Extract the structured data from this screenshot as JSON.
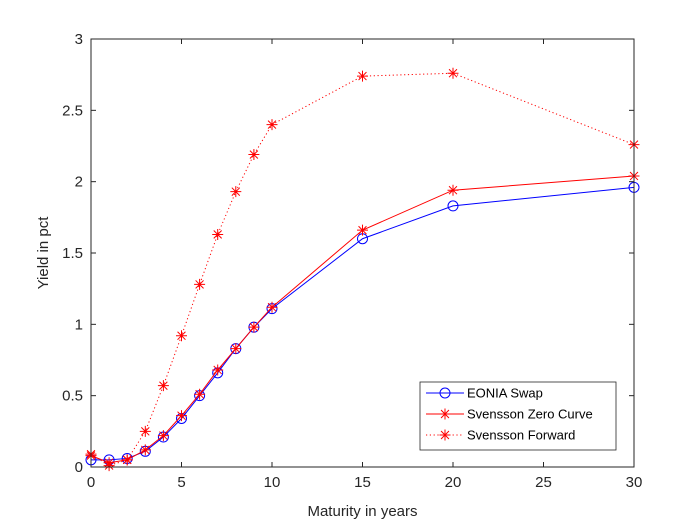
{
  "chart_data": {
    "type": "line",
    "title": "",
    "xlabel": "Maturity in years",
    "ylabel": "Yield in pct",
    "xlim": [
      0,
      30
    ],
    "ylim": [
      0,
      3
    ],
    "xticks": [
      0,
      5,
      10,
      15,
      20,
      25,
      30
    ],
    "yticks": [
      0,
      0.5,
      1,
      1.5,
      2,
      2.5,
      3
    ],
    "xtick_labels": [
      "0",
      "5",
      "10",
      "15",
      "20",
      "25",
      "30"
    ],
    "ytick_labels": [
      "0",
      "0.5",
      "1",
      "1.5",
      "2",
      "2.5",
      "3"
    ],
    "grid": false,
    "legend_position": "bottom-right",
    "series": [
      {
        "name": "EONIA Swap",
        "color": "#0000ff",
        "line_style": "solid",
        "marker": "circle",
        "x": [
          0,
          1,
          2,
          3,
          4,
          5,
          6,
          7,
          8,
          9,
          10,
          15,
          20,
          30
        ],
        "y": [
          0.05,
          0.05,
          0.06,
          0.11,
          0.21,
          0.34,
          0.5,
          0.66,
          0.83,
          0.98,
          1.11,
          1.6,
          1.83,
          1.96
        ]
      },
      {
        "name": "Svensson Zero Curve",
        "color": "#ff0000",
        "line_style": "solid",
        "marker": "star",
        "x": [
          0,
          1,
          2,
          3,
          4,
          5,
          6,
          7,
          8,
          9,
          10,
          15,
          20,
          30
        ],
        "y": [
          0.08,
          0.03,
          0.05,
          0.12,
          0.22,
          0.36,
          0.51,
          0.68,
          0.83,
          0.98,
          1.12,
          1.66,
          1.94,
          2.04
        ]
      },
      {
        "name": "Svensson Forward",
        "color": "#ff0000",
        "line_style": "dotted",
        "marker": "star",
        "x": [
          0,
          1,
          2,
          3,
          4,
          5,
          6,
          7,
          8,
          9,
          10,
          15,
          20,
          30
        ],
        "y": [
          0.09,
          0.01,
          0.05,
          0.25,
          0.57,
          0.92,
          1.28,
          1.63,
          1.93,
          2.19,
          2.4,
          2.74,
          2.76,
          2.26
        ]
      }
    ]
  }
}
